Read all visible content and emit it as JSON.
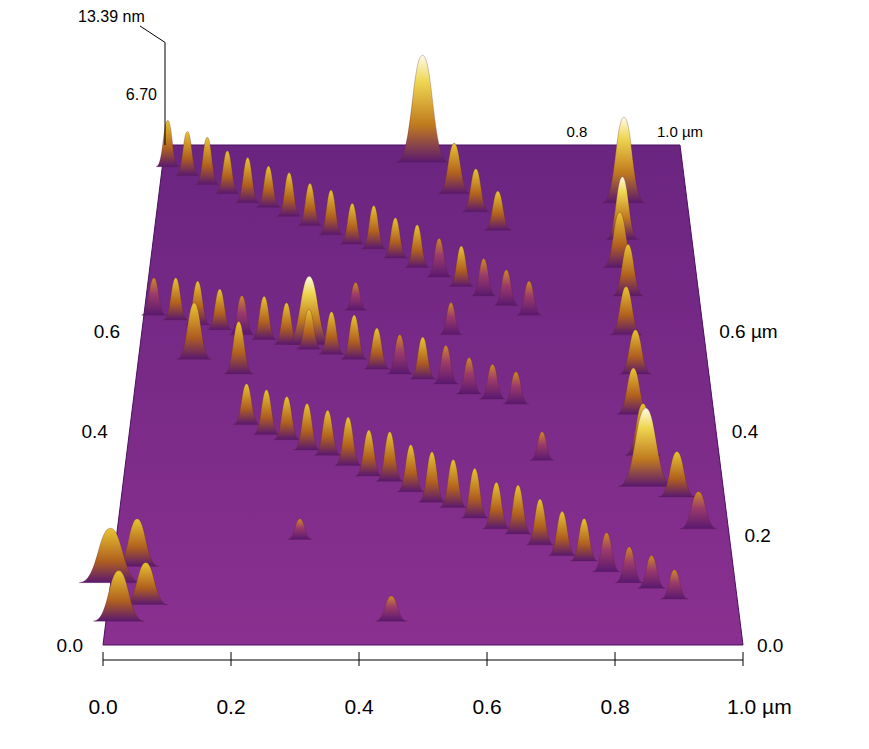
{
  "chart_data": {
    "type": "surface",
    "xlim": [
      0,
      1
    ],
    "ylim": [
      0,
      1
    ],
    "zlim": [
      0,
      13.39
    ],
    "xticks": [
      {
        "value": 0,
        "label": "0.0"
      },
      {
        "value": 0.2,
        "label": "0.2"
      },
      {
        "value": 0.4,
        "label": "0.4"
      },
      {
        "value": 0.6,
        "label": "0.6"
      },
      {
        "value": 0.8,
        "label": "0.8"
      },
      {
        "value": 1.0,
        "label": "1.0 µm"
      }
    ],
    "back_xticks": [
      {
        "value": 0.8,
        "label": "0.8"
      },
      {
        "value": 1.0,
        "label": "1.0 µm"
      }
    ],
    "yticks": [
      {
        "value": 0,
        "label": "0.0"
      },
      {
        "value": 0.2,
        "label": "0.2"
      },
      {
        "value": 0.4,
        "label": "0.4"
      },
      {
        "value": 0.6,
        "label": "0.6 µm"
      }
    ],
    "yticks_left": [
      {
        "value": 0,
        "label": "0.0"
      },
      {
        "value": 0.4,
        "label": "0.4"
      },
      {
        "value": 0.6,
        "label": "0.6"
      }
    ],
    "zticks": [
      {
        "value": 6.7,
        "label": "6.70"
      },
      {
        "value": 13.39,
        "label": "13.39 nm"
      }
    ],
    "peaks": [
      {
        "x": 0.2,
        "y": 0.42,
        "z": 4.5,
        "w": 0.022
      },
      {
        "x": 0.235,
        "y": 0.4,
        "z": 5.0,
        "w": 0.022
      },
      {
        "x": 0.27,
        "y": 0.39,
        "z": 4.8,
        "w": 0.022
      },
      {
        "x": 0.305,
        "y": 0.37,
        "z": 5.2,
        "w": 0.022
      },
      {
        "x": 0.34,
        "y": 0.36,
        "z": 5.0,
        "w": 0.022
      },
      {
        "x": 0.375,
        "y": 0.34,
        "z": 5.4,
        "w": 0.022
      },
      {
        "x": 0.41,
        "y": 0.32,
        "z": 5.1,
        "w": 0.022
      },
      {
        "x": 0.445,
        "y": 0.31,
        "z": 5.5,
        "w": 0.022
      },
      {
        "x": 0.48,
        "y": 0.29,
        "z": 5.2,
        "w": 0.022
      },
      {
        "x": 0.515,
        "y": 0.27,
        "z": 5.6,
        "w": 0.022
      },
      {
        "x": 0.55,
        "y": 0.26,
        "z": 5.3,
        "w": 0.022
      },
      {
        "x": 0.585,
        "y": 0.24,
        "z": 5.5,
        "w": 0.022
      },
      {
        "x": 0.62,
        "y": 0.22,
        "z": 5.1,
        "w": 0.022
      },
      {
        "x": 0.655,
        "y": 0.21,
        "z": 5.4,
        "w": 0.022
      },
      {
        "x": 0.69,
        "y": 0.19,
        "z": 5.0,
        "w": 0.022
      },
      {
        "x": 0.725,
        "y": 0.17,
        "z": 4.8,
        "w": 0.022
      },
      {
        "x": 0.76,
        "y": 0.16,
        "z": 4.6,
        "w": 0.022
      },
      {
        "x": 0.795,
        "y": 0.14,
        "z": 4.2,
        "w": 0.022
      },
      {
        "x": 0.83,
        "y": 0.12,
        "z": 3.8,
        "w": 0.022
      },
      {
        "x": 0.865,
        "y": 0.11,
        "z": 3.4,
        "w": 0.022
      },
      {
        "x": 0.9,
        "y": 0.09,
        "z": 3.0,
        "w": 0.022
      },
      {
        "x": 0.02,
        "y": 0.64,
        "z": 4.2,
        "w": 0.022
      },
      {
        "x": 0.06,
        "y": 0.63,
        "z": 4.8,
        "w": 0.022
      },
      {
        "x": 0.1,
        "y": 0.62,
        "z": 5.0,
        "w": 0.022
      },
      {
        "x": 0.14,
        "y": 0.61,
        "z": 4.6,
        "w": 0.022
      },
      {
        "x": 0.18,
        "y": 0.6,
        "z": 4.4,
        "w": 0.022
      },
      {
        "x": 0.22,
        "y": 0.59,
        "z": 4.9,
        "w": 0.022
      },
      {
        "x": 0.26,
        "y": 0.58,
        "z": 4.7,
        "w": 0.022
      },
      {
        "x": 0.3,
        "y": 0.57,
        "z": 4.5,
        "w": 0.022
      },
      {
        "x": 0.34,
        "y": 0.56,
        "z": 4.8,
        "w": 0.022
      },
      {
        "x": 0.38,
        "y": 0.55,
        "z": 5.0,
        "w": 0.022
      },
      {
        "x": 0.42,
        "y": 0.53,
        "z": 4.6,
        "w": 0.022
      },
      {
        "x": 0.46,
        "y": 0.52,
        "z": 4.4,
        "w": 0.022
      },
      {
        "x": 0.5,
        "y": 0.51,
        "z": 4.7,
        "w": 0.022
      },
      {
        "x": 0.54,
        "y": 0.5,
        "z": 4.3,
        "w": 0.022
      },
      {
        "x": 0.58,
        "y": 0.48,
        "z": 4.0,
        "w": 0.022
      },
      {
        "x": 0.62,
        "y": 0.47,
        "z": 3.8,
        "w": 0.022
      },
      {
        "x": 0.66,
        "y": 0.46,
        "z": 3.5,
        "w": 0.022
      },
      {
        "x": 0.01,
        "y": 0.96,
        "z": 5.5,
        "w": 0.022
      },
      {
        "x": 0.05,
        "y": 0.94,
        "z": 5.2,
        "w": 0.022
      },
      {
        "x": 0.09,
        "y": 0.92,
        "z": 5.6,
        "w": 0.022
      },
      {
        "x": 0.13,
        "y": 0.9,
        "z": 5.0,
        "w": 0.022
      },
      {
        "x": 0.17,
        "y": 0.88,
        "z": 5.3,
        "w": 0.022
      },
      {
        "x": 0.21,
        "y": 0.87,
        "z": 4.8,
        "w": 0.022
      },
      {
        "x": 0.25,
        "y": 0.85,
        "z": 5.1,
        "w": 0.022
      },
      {
        "x": 0.29,
        "y": 0.83,
        "z": 4.9,
        "w": 0.022
      },
      {
        "x": 0.33,
        "y": 0.81,
        "z": 5.2,
        "w": 0.022
      },
      {
        "x": 0.37,
        "y": 0.79,
        "z": 4.7,
        "w": 0.022
      },
      {
        "x": 0.41,
        "y": 0.78,
        "z": 5.0,
        "w": 0.022
      },
      {
        "x": 0.45,
        "y": 0.76,
        "z": 4.6,
        "w": 0.022
      },
      {
        "x": 0.49,
        "y": 0.74,
        "z": 4.9,
        "w": 0.022
      },
      {
        "x": 0.53,
        "y": 0.72,
        "z": 4.4,
        "w": 0.022
      },
      {
        "x": 0.57,
        "y": 0.7,
        "z": 4.6,
        "w": 0.022
      },
      {
        "x": 0.61,
        "y": 0.68,
        "z": 4.2,
        "w": 0.022
      },
      {
        "x": 0.65,
        "y": 0.66,
        "z": 4.0,
        "w": 0.022
      },
      {
        "x": 0.69,
        "y": 0.64,
        "z": 3.8,
        "w": 0.022
      },
      {
        "x": 0.88,
        "y": 0.88,
        "z": 10.5,
        "w": 0.04
      },
      {
        "x": 0.87,
        "y": 0.8,
        "z": 7.5,
        "w": 0.03
      },
      {
        "x": 0.86,
        "y": 0.74,
        "z": 6.5,
        "w": 0.03
      },
      {
        "x": 0.87,
        "y": 0.68,
        "z": 6.0,
        "w": 0.028
      },
      {
        "x": 0.86,
        "y": 0.6,
        "z": 5.5,
        "w": 0.028
      },
      {
        "x": 0.87,
        "y": 0.52,
        "z": 5.0,
        "w": 0.028
      },
      {
        "x": 0.86,
        "y": 0.44,
        "z": 5.2,
        "w": 0.028
      },
      {
        "x": 0.87,
        "y": 0.36,
        "z": 5.8,
        "w": 0.03
      },
      {
        "x": 0.87,
        "y": 0.3,
        "z": 9.0,
        "w": 0.045
      },
      {
        "x": 0.92,
        "y": 0.28,
        "z": 5.0,
        "w": 0.03
      },
      {
        "x": 0.95,
        "y": 0.22,
        "z": 4.0,
        "w": 0.03
      },
      {
        "x": 0.5,
        "y": 0.97,
        "z": 13.39,
        "w": 0.05
      },
      {
        "x": 0.56,
        "y": 0.9,
        "z": 6.0,
        "w": 0.03
      },
      {
        "x": 0.6,
        "y": 0.86,
        "z": 5.0,
        "w": 0.025
      },
      {
        "x": 0.64,
        "y": 0.82,
        "z": 4.5,
        "w": 0.025
      },
      {
        "x": 0.0,
        "y": 0.12,
        "z": 6.0,
        "w": 0.05
      },
      {
        "x": 0.04,
        "y": 0.15,
        "z": 5.2,
        "w": 0.035
      },
      {
        "x": 0.06,
        "y": 0.08,
        "z": 4.5,
        "w": 0.035
      },
      {
        "x": 0.02,
        "y": 0.05,
        "z": 5.5,
        "w": 0.04
      },
      {
        "x": 0.1,
        "y": 0.55,
        "z": 6.5,
        "w": 0.03
      },
      {
        "x": 0.18,
        "y": 0.52,
        "z": 6.0,
        "w": 0.025
      },
      {
        "x": 0.45,
        "y": 0.05,
        "z": 2.5,
        "w": 0.025
      },
      {
        "x": 0.3,
        "y": 0.2,
        "z": 2.0,
        "w": 0.02
      },
      {
        "x": 0.55,
        "y": 0.6,
        "z": 3.5,
        "w": 0.02
      },
      {
        "x": 0.7,
        "y": 0.35,
        "z": 3.0,
        "w": 0.02
      },
      {
        "x": 0.38,
        "y": 0.65,
        "z": 3.0,
        "w": 0.02
      },
      {
        "x": 0.3,
        "y": 0.58,
        "z": 8.0,
        "w": 0.04
      }
    ]
  }
}
